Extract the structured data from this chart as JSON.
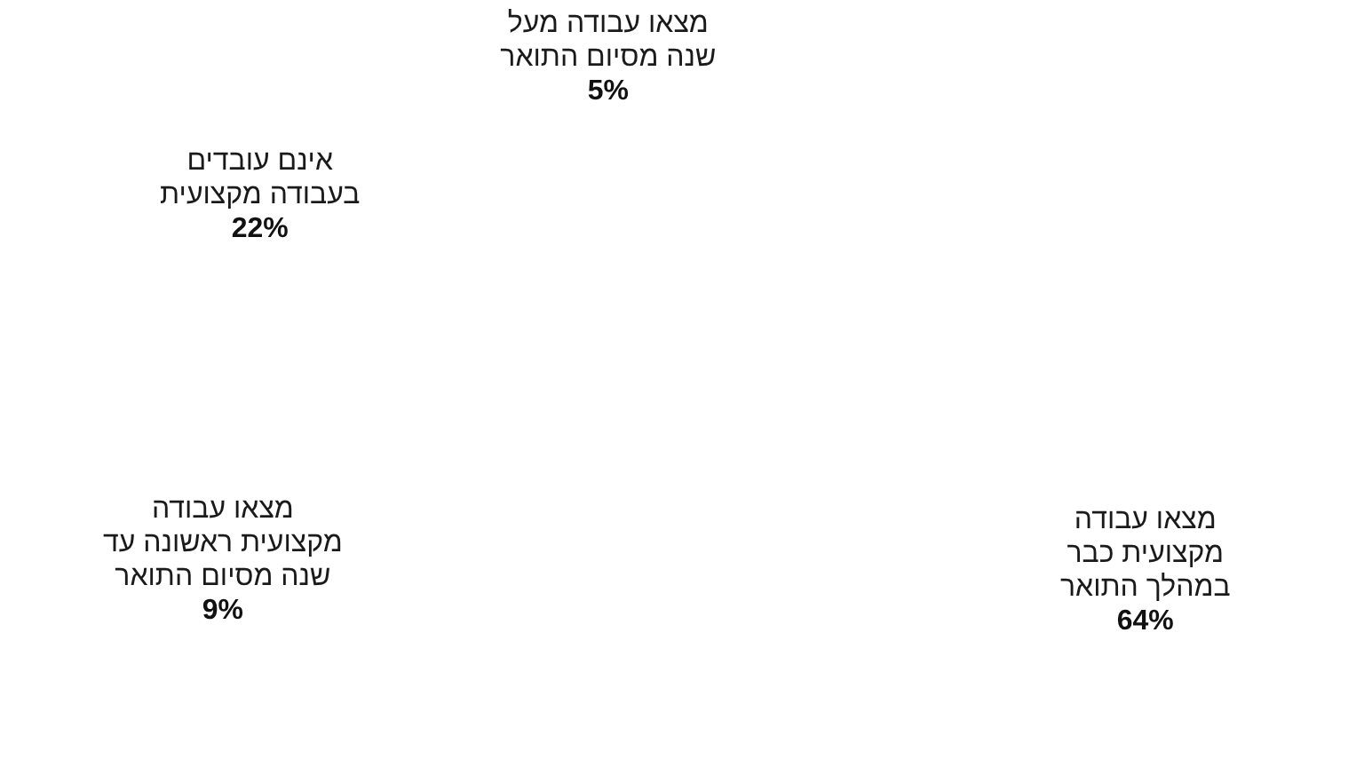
{
  "chart_data": {
    "type": "other",
    "categories": [
      "מצאו עבודה\nמקצועית כבר\nבמהלך התואר",
      "מצאו עבודה\nמקצועית ראשונה עד\nשנה מסיום התואר",
      "אינם עובדים\nבעבודה מקצועית",
      "מצאו עבודה מעל\nשנה מסיום התואר"
    ],
    "values": [
      64,
      9,
      22,
      5
    ],
    "value_labels": [
      "64%",
      "9%",
      "22%",
      "5%"
    ]
  }
}
